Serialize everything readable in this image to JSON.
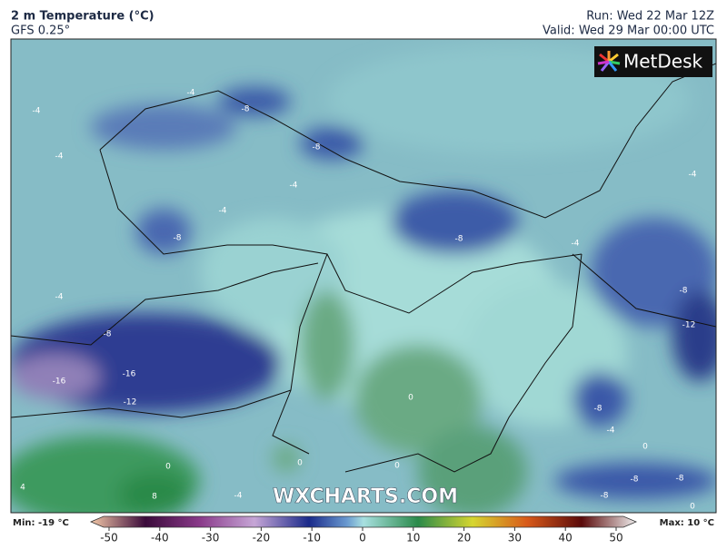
{
  "header": {
    "title": "2 m Temperature (°C)",
    "model": "GFS 0.25°",
    "run": "Run: Wed 22 Mar 12Z",
    "valid": "Valid: Wed 29 Mar 00:00 UTC"
  },
  "logo": "MetDesk",
  "watermark": "WXCHARTS.COM",
  "contour_labels": [
    "-4",
    "-4",
    "-8",
    "-8",
    "-4",
    "-4",
    "-4",
    "-8",
    "-8",
    "-4",
    "-4",
    "-4",
    "-8",
    "-16",
    "-16",
    "-12",
    "-8",
    "-12",
    "0",
    "-8",
    "-4",
    "0",
    "0",
    "0",
    "-8",
    "-8",
    "-8",
    "-4",
    "8",
    "4",
    "0",
    "0"
  ],
  "footer": {
    "min": "Min: -19 °C",
    "max": "Max: 10 °C"
  },
  "colorbar": {
    "ticks": [
      -50,
      -40,
      -30,
      -20,
      -10,
      0,
      10,
      20,
      30,
      40,
      50
    ]
  }
}
